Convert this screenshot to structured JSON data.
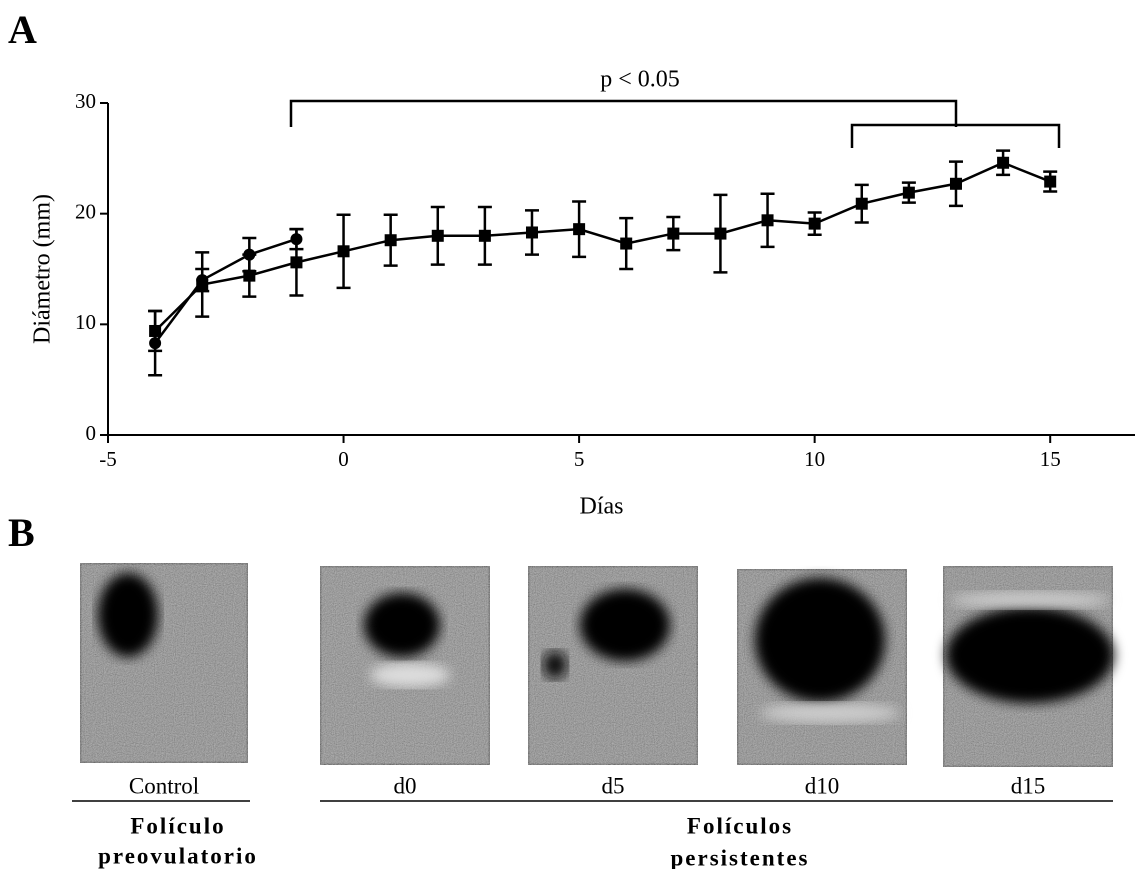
{
  "panels": [
    "A",
    "B"
  ],
  "chart_data": {
    "type": "line",
    "x_label": "Días",
    "y_label": "Diámetro (mm)",
    "annotation": "p < 0.05",
    "xlim": [
      -5,
      16.8
    ],
    "ylim": [
      0,
      30
    ],
    "xticks": [
      -5,
      0,
      5,
      10,
      15
    ],
    "yticks": [
      0,
      10,
      20,
      30
    ],
    "series": [
      {
        "marker": "circle",
        "color": "#000000",
        "x": [
          -4,
          -3,
          -2,
          -1
        ],
        "values": [
          8.3,
          14.0,
          16.3,
          17.7
        ],
        "errors": [
          2.9,
          1.0,
          1.5,
          0.9
        ]
      },
      {
        "marker": "square",
        "color": "#000000",
        "x": [
          -4,
          -3,
          -2,
          -1,
          0,
          1,
          2,
          3,
          4,
          5,
          6,
          7,
          8,
          9,
          10,
          11,
          12,
          13,
          14,
          15
        ],
        "values": [
          9.4,
          13.6,
          14.4,
          15.6,
          16.6,
          17.6,
          18.0,
          18.0,
          18.3,
          18.6,
          17.3,
          18.2,
          18.2,
          19.4,
          19.1,
          20.9,
          21.9,
          22.7,
          24.6,
          22.9
        ],
        "errors": [
          1.8,
          2.9,
          1.9,
          3.0,
          3.3,
          2.3,
          2.6,
          2.6,
          2.0,
          2.5,
          2.3,
          1.5,
          3.5,
          2.4,
          1.0,
          1.7,
          0.9,
          2.0,
          1.1,
          0.9
        ]
      }
    ]
  },
  "images": {
    "captions": [
      "Control",
      "d0",
      "d5",
      "d10",
      "d15"
    ],
    "groups": [
      [
        "Folículo",
        "preovulatorio"
      ],
      [
        "Folículos",
        "persistentes"
      ]
    ]
  }
}
